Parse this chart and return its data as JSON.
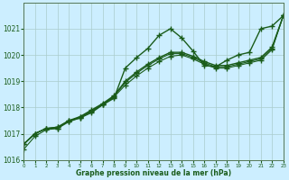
{
  "xlabel": "Graphe pression niveau de la mer (hPa)",
  "bg_color": "#cceeff",
  "grid_color": "#aacccc",
  "line_color": "#1a5c1a",
  "ylim": [
    1016,
    1022
  ],
  "xlim": [
    0,
    23
  ],
  "yticks": [
    1016,
    1017,
    1018,
    1019,
    1020,
    1021
  ],
  "xticks": [
    0,
    1,
    2,
    3,
    4,
    5,
    6,
    7,
    8,
    9,
    10,
    11,
    12,
    13,
    14,
    15,
    16,
    17,
    18,
    19,
    20,
    21,
    22,
    23
  ],
  "series": [
    {
      "x": [
        0,
        1,
        2,
        3,
        4,
        5,
        6,
        7,
        8,
        9,
        10,
        11,
        12,
        13,
        14,
        15,
        16,
        17,
        18,
        19,
        20,
        21,
        22,
        23
      ],
      "y": [
        1016.6,
        1017.0,
        1017.2,
        1017.2,
        1017.5,
        1017.6,
        1017.8,
        1018.1,
        1018.35,
        1019.5,
        1019.9,
        1020.25,
        1020.75,
        1021.0,
        1020.65,
        1020.15,
        1019.6,
        1019.55,
        1019.8,
        1020.0,
        1020.1,
        1021.0,
        1021.1,
        1021.5
      ],
      "marker": "+",
      "markersize": 4,
      "linewidth": 1.0,
      "linestyle": "-"
    },
    {
      "x": [
        0,
        1,
        2,
        3,
        4,
        5,
        6,
        7,
        8,
        9,
        10,
        11,
        12,
        13,
        14,
        15,
        16,
        17,
        18,
        19,
        20,
        21,
        22,
        23
      ],
      "y": [
        1016.6,
        1017.0,
        1017.2,
        1017.25,
        1017.5,
        1017.65,
        1017.9,
        1018.15,
        1018.45,
        1019.0,
        1019.35,
        1019.65,
        1019.9,
        1020.1,
        1020.1,
        1019.95,
        1019.75,
        1019.6,
        1019.6,
        1019.7,
        1019.8,
        1019.9,
        1020.3,
        1021.5
      ],
      "marker": "+",
      "markersize": 4,
      "linewidth": 1.0,
      "linestyle": "-"
    },
    {
      "x": [
        0,
        1,
        2,
        3,
        4,
        5,
        6,
        7,
        8,
        9,
        10,
        11,
        12,
        13,
        14,
        15,
        16,
        17,
        18,
        19,
        20,
        21,
        22,
        23
      ],
      "y": [
        1016.6,
        1017.0,
        1017.2,
        1017.25,
        1017.48,
        1017.63,
        1017.87,
        1018.12,
        1018.42,
        1018.95,
        1019.3,
        1019.6,
        1019.85,
        1020.05,
        1020.05,
        1019.9,
        1019.7,
        1019.55,
        1019.55,
        1019.65,
        1019.75,
        1019.85,
        1020.25,
        1021.5
      ],
      "marker": "+",
      "markersize": 4,
      "linewidth": 0.8,
      "linestyle": "-"
    },
    {
      "x": [
        0,
        1,
        2,
        3,
        4,
        5,
        6,
        7,
        8,
        9,
        10,
        11,
        12,
        13,
        14,
        15,
        16,
        17,
        18,
        19,
        20,
        21,
        22,
        23
      ],
      "y": [
        1016.4,
        1016.9,
        1017.15,
        1017.2,
        1017.45,
        1017.6,
        1017.85,
        1018.1,
        1018.4,
        1018.85,
        1019.2,
        1019.5,
        1019.75,
        1019.95,
        1020.0,
        1019.85,
        1019.65,
        1019.5,
        1019.5,
        1019.6,
        1019.7,
        1019.8,
        1020.2,
        1021.5
      ],
      "marker": "+",
      "markersize": 4,
      "linewidth": 0.8,
      "linestyle": "-"
    }
  ]
}
